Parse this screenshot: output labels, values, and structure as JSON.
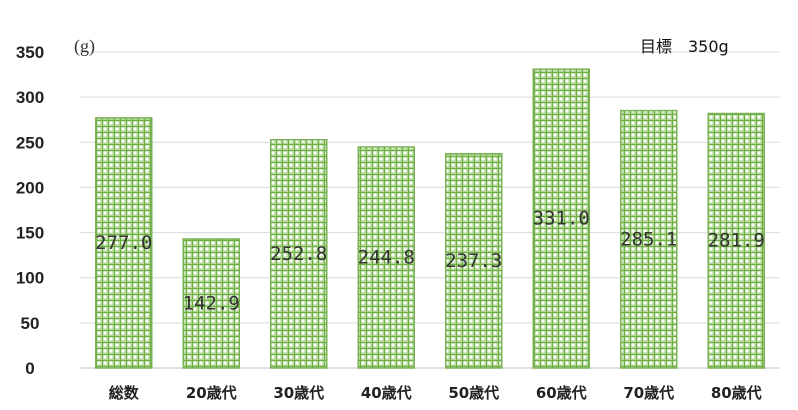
{
  "chart_data": {
    "type": "bar",
    "categories": [
      "総数",
      "20歳代",
      "30歳代",
      "40歳代",
      "50歳代",
      "60歳代",
      "70歳代",
      "80歳代"
    ],
    "values": [
      277.0,
      142.9,
      252.8,
      244.8,
      237.3,
      331.0,
      285.1,
      281.9
    ],
    "data_labels": [
      "277.0",
      "142.9",
      "252.8",
      "244.8",
      "237.3",
      "331.0",
      "285.1",
      "281.9"
    ],
    "ylim": [
      0,
      350
    ],
    "yticks": [
      0,
      50,
      100,
      150,
      200,
      250,
      300,
      350
    ],
    "unit_label": "(g)",
    "annotation": "目標　350g",
    "grid": true,
    "colors": {
      "bar_fill": "#b5d99a",
      "bar_pattern": "#6fae45",
      "bar_stroke": "#7ab356",
      "grid": "#d9d9d9"
    }
  }
}
